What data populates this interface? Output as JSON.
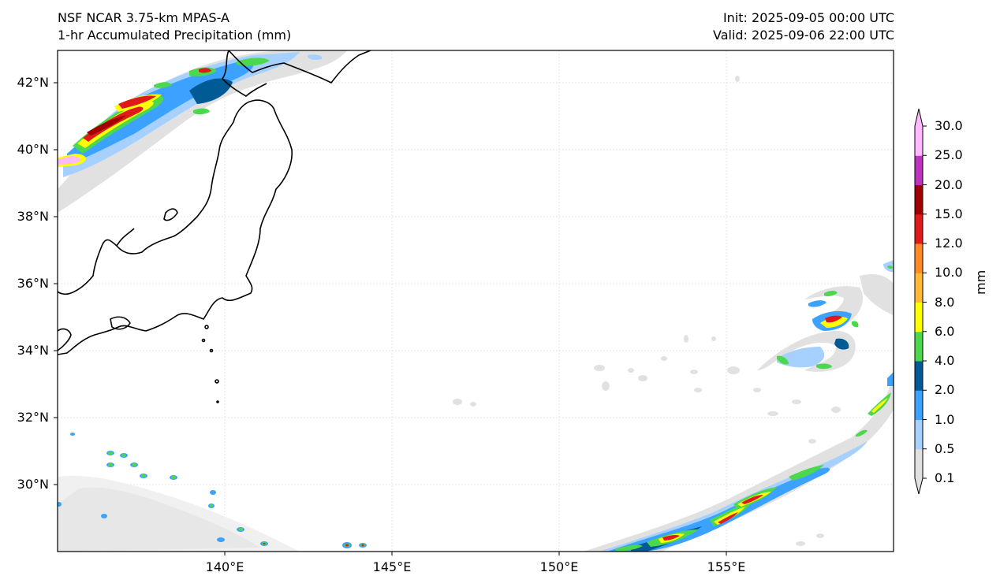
{
  "titles": {
    "left_line1": "NSF NCAR 3.75-km MPAS-A",
    "left_line2": "1-hr Accumulated Precipitation (mm)",
    "right_line1": "Init: 2025-09-05 00:00 UTC",
    "right_line2": "Valid: 2025-09-06 22:00 UTC"
  },
  "map": {
    "lat_labels": [
      "42°N",
      "40°N",
      "38°N",
      "36°N",
      "34°N",
      "32°N",
      "30°N"
    ],
    "lon_labels": [
      "140°E",
      "145°E",
      "150°E",
      "155°E"
    ]
  },
  "colorbar": {
    "units": "mm",
    "ticks": [
      "0.1",
      "0.5",
      "1.0",
      "2.0",
      "4.0",
      "6.0",
      "8.0",
      "10.0",
      "12.0",
      "15.0",
      "20.0",
      "25.0",
      "30.0"
    ],
    "colors": [
      "#e1e1e1",
      "#a6d1ff",
      "#3ca2ff",
      "#005a96",
      "#4cd84c",
      "#ffff00",
      "#ffb937",
      "#ff8a23",
      "#e01a1a",
      "#a00000",
      "#be32be",
      "#ffbaff"
    ]
  }
}
